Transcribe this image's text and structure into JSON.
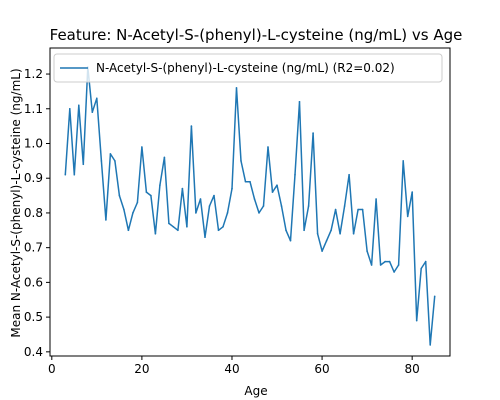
{
  "chart_data": {
    "type": "line",
    "title": "Feature: N-Acetyl-S-(phenyl)-L-cysteine (ng/mL) vs Age",
    "xlabel": "Age",
    "ylabel": "Mean N-Acetyl-S-(phenyl)-L-cysteine (ng/mL)",
    "xlim": [
      -0.4,
      88.4
    ],
    "ylim": [
      0.388,
      1.275
    ],
    "xticks": [
      0,
      20,
      40,
      60,
      80
    ],
    "yticks": [
      0.4,
      0.5,
      0.6,
      0.7,
      0.8,
      0.9,
      1.0,
      1.1,
      1.2
    ],
    "xtick_labels": [
      "0",
      "20",
      "40",
      "60",
      "80"
    ],
    "ytick_labels": [
      "0.4",
      "0.5",
      "0.6",
      "0.7",
      "0.8",
      "0.9",
      "1.0",
      "1.1",
      "1.2"
    ],
    "grid": false,
    "legend_position": "top",
    "series": [
      {
        "name": "N-Acetyl-S-(phenyl)-L-cysteine (ng/mL) (R2=0.02)",
        "color": "#1f77b4",
        "x": [
          3,
          4,
          5,
          6,
          7,
          8,
          9,
          10,
          11,
          12,
          13,
          14,
          15,
          16,
          17,
          18,
          19,
          20,
          21,
          22,
          23,
          24,
          25,
          26,
          27,
          28,
          29,
          30,
          31,
          32,
          33,
          34,
          35,
          36,
          37,
          38,
          39,
          40,
          41,
          42,
          43,
          44,
          45,
          46,
          47,
          48,
          49,
          50,
          51,
          52,
          53,
          54,
          55,
          56,
          57,
          58,
          59,
          60,
          61,
          62,
          63,
          64,
          65,
          66,
          67,
          68,
          69,
          70,
          71,
          72,
          73,
          74,
          75,
          76,
          77,
          78,
          79,
          80,
          81,
          82,
          83,
          84,
          85
        ],
        "y": [
          0.91,
          1.1,
          0.91,
          1.11,
          0.94,
          1.22,
          1.09,
          1.13,
          0.95,
          0.78,
          0.97,
          0.95,
          0.85,
          0.81,
          0.75,
          0.8,
          0.83,
          0.99,
          0.86,
          0.85,
          0.74,
          0.88,
          0.96,
          0.77,
          0.76,
          0.75,
          0.87,
          0.76,
          1.05,
          0.8,
          0.84,
          0.73,
          0.82,
          0.85,
          0.75,
          0.76,
          0.8,
          0.87,
          1.16,
          0.95,
          0.89,
          0.89,
          0.84,
          0.8,
          0.82,
          0.99,
          0.86,
          0.88,
          0.82,
          0.75,
          0.72,
          0.91,
          1.12,
          0.75,
          0.82,
          1.03,
          0.74,
          0.69,
          0.72,
          0.75,
          0.81,
          0.74,
          0.82,
          0.91,
          0.74,
          0.81,
          0.81,
          0.69,
          0.65,
          0.84,
          0.65,
          0.66,
          0.66,
          0.63,
          0.65,
          0.95,
          0.79,
          0.86,
          0.49,
          0.64,
          0.66,
          0.42,
          0.56
        ]
      }
    ]
  }
}
